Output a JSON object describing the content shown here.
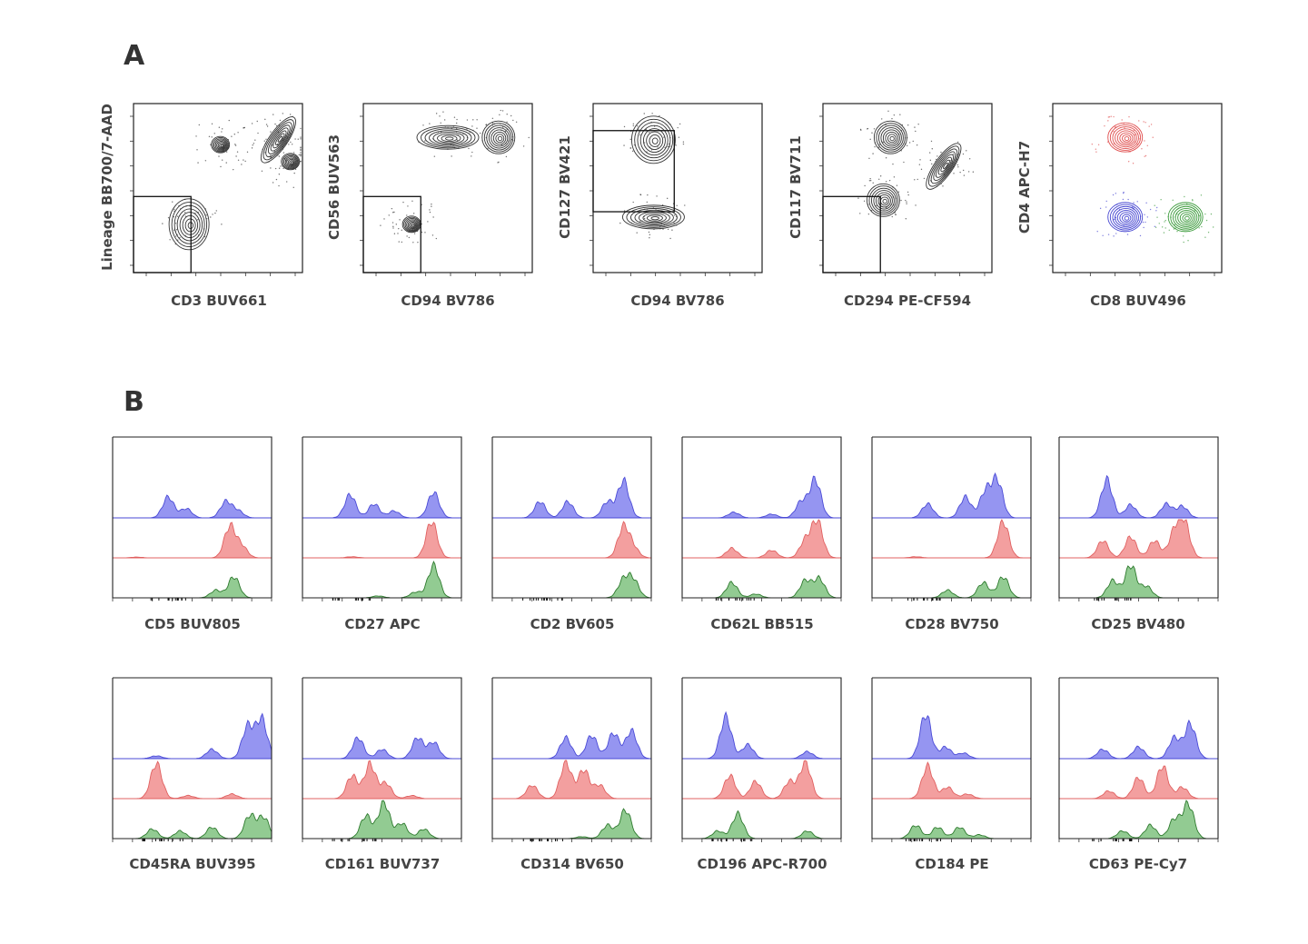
{
  "panels": {
    "a": {
      "letter": "A",
      "plots": [
        {
          "xlabel": "CD3 BUV661",
          "ylabel": "Lineage BB700/7-AAD"
        },
        {
          "xlabel": "CD94 BV786",
          "ylabel": "CD56 BUV563"
        },
        {
          "xlabel": "CD94 BV786",
          "ylabel": "CD127 BV421"
        },
        {
          "xlabel": "CD294 PE-CF594",
          "ylabel": "CD117 BV711"
        },
        {
          "xlabel": "CD8 BUV496",
          "ylabel": "CD4 APC-H7"
        }
      ]
    },
    "b": {
      "letter": "B",
      "histograms": [
        {
          "xlabel": "CD5 BUV805"
        },
        {
          "xlabel": "CD27 APC"
        },
        {
          "xlabel": "CD2 BV605"
        },
        {
          "xlabel": "CD62L BB515"
        },
        {
          "xlabel": "CD28 BV750"
        },
        {
          "xlabel": "CD25 BV480"
        },
        {
          "xlabel": "CD45RA BUV395"
        },
        {
          "xlabel": "CD161 BUV737"
        },
        {
          "xlabel": "CD314 BV650"
        },
        {
          "xlabel": "CD196 APC-R700"
        },
        {
          "xlabel": "CD184 PE"
        },
        {
          "xlabel": "CD63 PE-Cy7"
        }
      ]
    }
  },
  "colors": {
    "blue_fill": "#8f8ff0",
    "blue_line": "#4a4ad6",
    "red_fill": "#f29a9a",
    "red_line": "#e06060",
    "green_fill": "#8cc88c",
    "green_line": "#2e7a2e",
    "contour_black": "#333333",
    "contour_red": "#e05050",
    "contour_blue": "#4444d0",
    "contour_green": "#3a9a3a"
  },
  "chart_data": [
    {
      "type": "contour",
      "xlabel": "CD3 BUV661",
      "ylabel": "Lineage BB700/7-AAD",
      "gate": "lower-left",
      "populations": [
        {
          "x": 0.3,
          "y": 0.0,
          "spread": "wide"
        },
        {
          "x": 1.6,
          "y": 3.3,
          "spread": "small"
        },
        {
          "x": 4.0,
          "y": 3.5,
          "spread": "diagonal"
        },
        {
          "x": 4.5,
          "y": 2.6,
          "spread": "small"
        }
      ]
    },
    {
      "type": "contour",
      "xlabel": "CD94 BV786",
      "ylabel": "CD56 BUV563",
      "gate": "lower-left",
      "populations": [
        {
          "x": 1.5,
          "y": 3.6,
          "spread": "horizontal"
        },
        {
          "x": 3.6,
          "y": 3.6,
          "spread": "medium"
        },
        {
          "x": 0.0,
          "y": 0.0,
          "spread": "small"
        }
      ]
    },
    {
      "type": "contour",
      "xlabel": "CD94 BV786",
      "ylabel": "CD127 BV421",
      "gate": "upper-left",
      "populations": [
        {
          "x": 0.5,
          "y": 3.5,
          "spread": "triangular"
        },
        {
          "x": 0.5,
          "y": 0.3,
          "spread": "horizontal"
        }
      ]
    },
    {
      "type": "contour",
      "xlabel": "CD294 PE-CF594",
      "ylabel": "CD117 BV711",
      "gate": "lower-left",
      "populations": [
        {
          "x": 0.8,
          "y": 3.6,
          "spread": "medium"
        },
        {
          "x": 0.5,
          "y": 1.0,
          "spread": "medium"
        },
        {
          "x": 3.0,
          "y": 2.4,
          "spread": "diagonal"
        }
      ]
    },
    {
      "type": "contour",
      "xlabel": "CD8 BUV496",
      "ylabel": "CD4 APC-H7",
      "populations": [
        {
          "x": 1.0,
          "y": 3.6,
          "color": "red"
        },
        {
          "x": 1.0,
          "y": 0.3,
          "color": "blue"
        },
        {
          "x": 3.5,
          "y": 0.3,
          "color": "green"
        }
      ]
    },
    {
      "type": "area",
      "panel": "B",
      "x_range": [
        -3,
        5
      ],
      "histograms": [
        {
          "xlabel": "CD5 BUV805",
          "series": [
            {
              "color": "blue",
              "peaks": [
                [
                  -0.2,
                  0.45
                ],
                [
                  0.7,
                  0.2
                ],
                [
                  2.7,
                  0.35
                ],
                [
                  3.3,
                  0.15
                ]
              ]
            },
            {
              "color": "red",
              "peaks": [
                [
                  -1.8,
                  0.02
                ],
                [
                  2.9,
                  0.82
                ],
                [
                  3.5,
                  0.3
                ]
              ]
            },
            {
              "color": "green",
              "peaks": [
                [
                  2.2,
                  0.2
                ],
                [
                  3.1,
                  0.55
                ]
              ]
            }
          ]
        },
        {
          "xlabel": "CD27 APC",
          "series": [
            {
              "color": "blue",
              "peaks": [
                [
                  -0.6,
                  0.5
                ],
                [
                  0.6,
                  0.3
                ],
                [
                  1.6,
                  0.15
                ],
                [
                  3.6,
                  0.55
                ]
              ]
            },
            {
              "color": "red",
              "peaks": [
                [
                  -0.5,
                  0.03
                ],
                [
                  3.5,
                  0.95
                ]
              ]
            },
            {
              "color": "green",
              "peaks": [
                [
                  0.8,
                  0.05
                ],
                [
                  2.7,
                  0.15
                ],
                [
                  3.6,
                  0.85
                ]
              ]
            }
          ]
        },
        {
          "xlabel": "CD2 BV605",
          "series": [
            {
              "color": "blue",
              "peaks": [
                [
                  -0.6,
                  0.35
                ],
                [
                  0.8,
                  0.35
                ],
                [
                  2.8,
                  0.35
                ],
                [
                  3.6,
                  0.8
                ]
              ]
            },
            {
              "color": "red",
              "peaks": [
                [
                  3.6,
                  0.8
                ],
                [
                  4.1,
                  0.25
                ]
              ]
            },
            {
              "color": "green",
              "peaks": [
                [
                  3.6,
                  0.45
                ],
                [
                  4.1,
                  0.45
                ]
              ]
            }
          ]
        },
        {
          "xlabel": "CD62L BB515",
          "series": [
            {
              "color": "blue",
              "peaks": [
                [
                  -0.4,
                  0.12
                ],
                [
                  1.5,
                  0.08
                ],
                [
                  3.0,
                  0.35
                ],
                [
                  3.7,
                  0.82
                ]
              ]
            },
            {
              "color": "red",
              "peaks": [
                [
                  -0.5,
                  0.25
                ],
                [
                  1.5,
                  0.2
                ],
                [
                  3.2,
                  0.45
                ],
                [
                  3.8,
                  0.95
                ]
              ]
            },
            {
              "color": "green",
              "peaks": [
                [
                  -0.5,
                  0.4
                ],
                [
                  0.7,
                  0.1
                ],
                [
                  3.2,
                  0.45
                ],
                [
                  3.9,
                  0.5
                ]
              ]
            }
          ]
        },
        {
          "xlabel": "CD28 BV750",
          "series": [
            {
              "color": "blue",
              "peaks": [
                [
                  -0.2,
                  0.3
                ],
                [
                  1.7,
                  0.45
                ],
                [
                  2.7,
                  0.55
                ],
                [
                  3.3,
                  0.8
                ]
              ]
            },
            {
              "color": "red",
              "peaks": [
                [
                  -0.8,
                  0.03
                ],
                [
                  3.6,
                  0.95
                ]
              ]
            },
            {
              "color": "green",
              "peaks": [
                [
                  0.8,
                  0.2
                ],
                [
                  2.6,
                  0.4
                ],
                [
                  3.6,
                  0.55
                ]
              ]
            }
          ]
        },
        {
          "xlabel": "CD25 BV480",
          "series": [
            {
              "color": "blue",
              "peaks": [
                [
                  -0.6,
                  0.82
                ],
                [
                  0.6,
                  0.28
                ],
                [
                  2.4,
                  0.3
                ],
                [
                  3.2,
                  0.25
                ]
              ]
            },
            {
              "color": "red",
              "peaks": [
                [
                  -0.8,
                  0.45
                ],
                [
                  0.6,
                  0.55
                ],
                [
                  1.8,
                  0.45
                ],
                [
                  2.8,
                  0.65
                ],
                [
                  3.3,
                  0.9
                ]
              ]
            },
            {
              "color": "green",
              "peaks": [
                [
                  -0.3,
                  0.45
                ],
                [
                  0.6,
                  0.85
                ],
                [
                  1.4,
                  0.3
                ]
              ]
            }
          ]
        },
        {
          "xlabel": "CD45RA BUV395",
          "series": [
            {
              "color": "blue",
              "peaks": [
                [
                  -0.8,
                  0.06
                ],
                [
                  2.0,
                  0.2
                ],
                [
                  3.8,
                  0.7
                ],
                [
                  4.5,
                  0.85
                ]
              ]
            },
            {
              "color": "red",
              "peaks": [
                [
                  -0.8,
                  0.92
                ],
                [
                  0.8,
                  0.08
                ],
                [
                  3.0,
                  0.12
                ]
              ]
            },
            {
              "color": "green",
              "peaks": [
                [
                  -1.0,
                  0.25
                ],
                [
                  0.4,
                  0.2
                ],
                [
                  2.0,
                  0.3
                ],
                [
                  3.9,
                  0.6
                ],
                [
                  4.6,
                  0.55
                ]
              ]
            }
          ]
        },
        {
          "xlabel": "CD161 BUV737",
          "series": [
            {
              "color": "blue",
              "peaks": [
                [
                  -0.2,
                  0.45
                ],
                [
                  1.0,
                  0.2
                ],
                [
                  2.8,
                  0.45
                ],
                [
                  3.6,
                  0.35
                ]
              ]
            },
            {
              "color": "red",
              "peaks": [
                [
                  -0.5,
                  0.6
                ],
                [
                  0.4,
                  0.9
                ],
                [
                  1.2,
                  0.4
                ],
                [
                  2.5,
                  0.08
                ]
              ]
            },
            {
              "color": "green",
              "peaks": [
                [
                  0.2,
                  0.6
                ],
                [
                  1.1,
                  0.95
                ],
                [
                  2.0,
                  0.4
                ],
                [
                  3.1,
                  0.25
                ]
              ]
            }
          ]
        },
        {
          "xlabel": "CD314 BV650",
          "series": [
            {
              "color": "blue",
              "peaks": [
                [
                  0.7,
                  0.45
                ],
                [
                  2.0,
                  0.5
                ],
                [
                  3.1,
                  0.55
                ],
                [
                  4.0,
                  0.6
                ]
              ]
            },
            {
              "color": "red",
              "peaks": [
                [
                  -1.0,
                  0.35
                ],
                [
                  0.7,
                  0.95
                ],
                [
                  1.6,
                  0.75
                ],
                [
                  2.4,
                  0.35
                ]
              ]
            },
            {
              "color": "green",
              "peaks": [
                [
                  1.5,
                  0.05
                ],
                [
                  2.8,
                  0.35
                ],
                [
                  3.7,
                  0.75
                ]
              ]
            }
          ]
        },
        {
          "xlabel": "CD196 APC-R700",
          "series": [
            {
              "color": "blue",
              "peaks": [
                [
                  -0.8,
                  0.9
                ],
                [
                  0.3,
                  0.3
                ],
                [
                  3.3,
                  0.15
                ]
              ]
            },
            {
              "color": "red",
              "peaks": [
                [
                  -0.6,
                  0.6
                ],
                [
                  0.7,
                  0.45
                ],
                [
                  2.4,
                  0.45
                ],
                [
                  3.2,
                  0.95
                ]
              ]
            },
            {
              "color": "green",
              "peaks": [
                [
                  -1.2,
                  0.2
                ],
                [
                  -0.2,
                  0.65
                ],
                [
                  3.3,
                  0.2
                ]
              ]
            }
          ]
        },
        {
          "xlabel": "CD184 PE",
          "series": [
            {
              "color": "blue",
              "peaks": [
                [
                  -0.3,
                  0.95
                ],
                [
                  0.7,
                  0.25
                ],
                [
                  1.6,
                  0.12
                ]
              ]
            },
            {
              "color": "red",
              "peaks": [
                [
                  -0.2,
                  0.85
                ],
                [
                  0.8,
                  0.3
                ],
                [
                  1.8,
                  0.12
                ]
              ]
            },
            {
              "color": "green",
              "peaks": [
                [
                  -0.8,
                  0.35
                ],
                [
                  0.3,
                  0.3
                ],
                [
                  1.4,
                  0.3
                ],
                [
                  2.4,
                  0.1
                ]
              ]
            }
          ]
        },
        {
          "xlabel": "CD63 PE-Cy7",
          "series": [
            {
              "color": "blue",
              "peaks": [
                [
                  -0.8,
                  0.2
                ],
                [
                  1.0,
                  0.25
                ],
                [
                  2.8,
                  0.45
                ],
                [
                  3.6,
                  0.75
                ]
              ]
            },
            {
              "color": "red",
              "peaks": [
                [
                  -0.5,
                  0.2
                ],
                [
                  1.0,
                  0.55
                ],
                [
                  2.2,
                  0.85
                ],
                [
                  3.2,
                  0.3
                ]
              ]
            },
            {
              "color": "green",
              "peaks": [
                [
                  0.2,
                  0.2
                ],
                [
                  1.6,
                  0.35
                ],
                [
                  2.8,
                  0.5
                ],
                [
                  3.5,
                  0.9
                ]
              ]
            }
          ]
        }
      ]
    }
  ]
}
